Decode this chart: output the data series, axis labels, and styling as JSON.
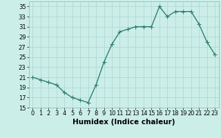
{
  "x": [
    0,
    1,
    2,
    3,
    4,
    5,
    6,
    7,
    8,
    9,
    10,
    11,
    12,
    13,
    14,
    15,
    16,
    17,
    18,
    19,
    20,
    21,
    22,
    23
  ],
  "y": [
    21,
    20.5,
    20,
    19.5,
    18,
    17,
    16.5,
    16,
    19.5,
    24,
    27.5,
    30,
    30.5,
    31,
    31,
    31,
    35,
    33,
    34,
    34,
    34,
    31.5,
    28,
    25.5
  ],
  "line_color": "#2e7d6e",
  "marker": "+",
  "marker_size": 4,
  "bg_color": "#cceee8",
  "grid_color": "#b0d8d2",
  "xlabel": "Humidex (Indice chaleur)",
  "ylim": [
    15,
    36
  ],
  "xlim": [
    -0.5,
    23.5
  ],
  "yticks": [
    15,
    17,
    19,
    21,
    23,
    25,
    27,
    29,
    31,
    33,
    35
  ],
  "xticks": [
    0,
    1,
    2,
    3,
    4,
    5,
    6,
    7,
    8,
    9,
    10,
    11,
    12,
    13,
    14,
    15,
    16,
    17,
    18,
    19,
    20,
    21,
    22,
    23
  ],
  "xtick_labels": [
    "0",
    "1",
    "2",
    "3",
    "4",
    "5",
    "6",
    "7",
    "8",
    "9",
    "10",
    "11",
    "12",
    "13",
    "14",
    "15",
    "16",
    "17",
    "18",
    "19",
    "20",
    "21",
    "22",
    "23"
  ],
  "tick_fontsize": 6,
  "xlabel_fontsize": 7.5,
  "linewidth": 1.0,
  "markeredgewidth": 0.8
}
